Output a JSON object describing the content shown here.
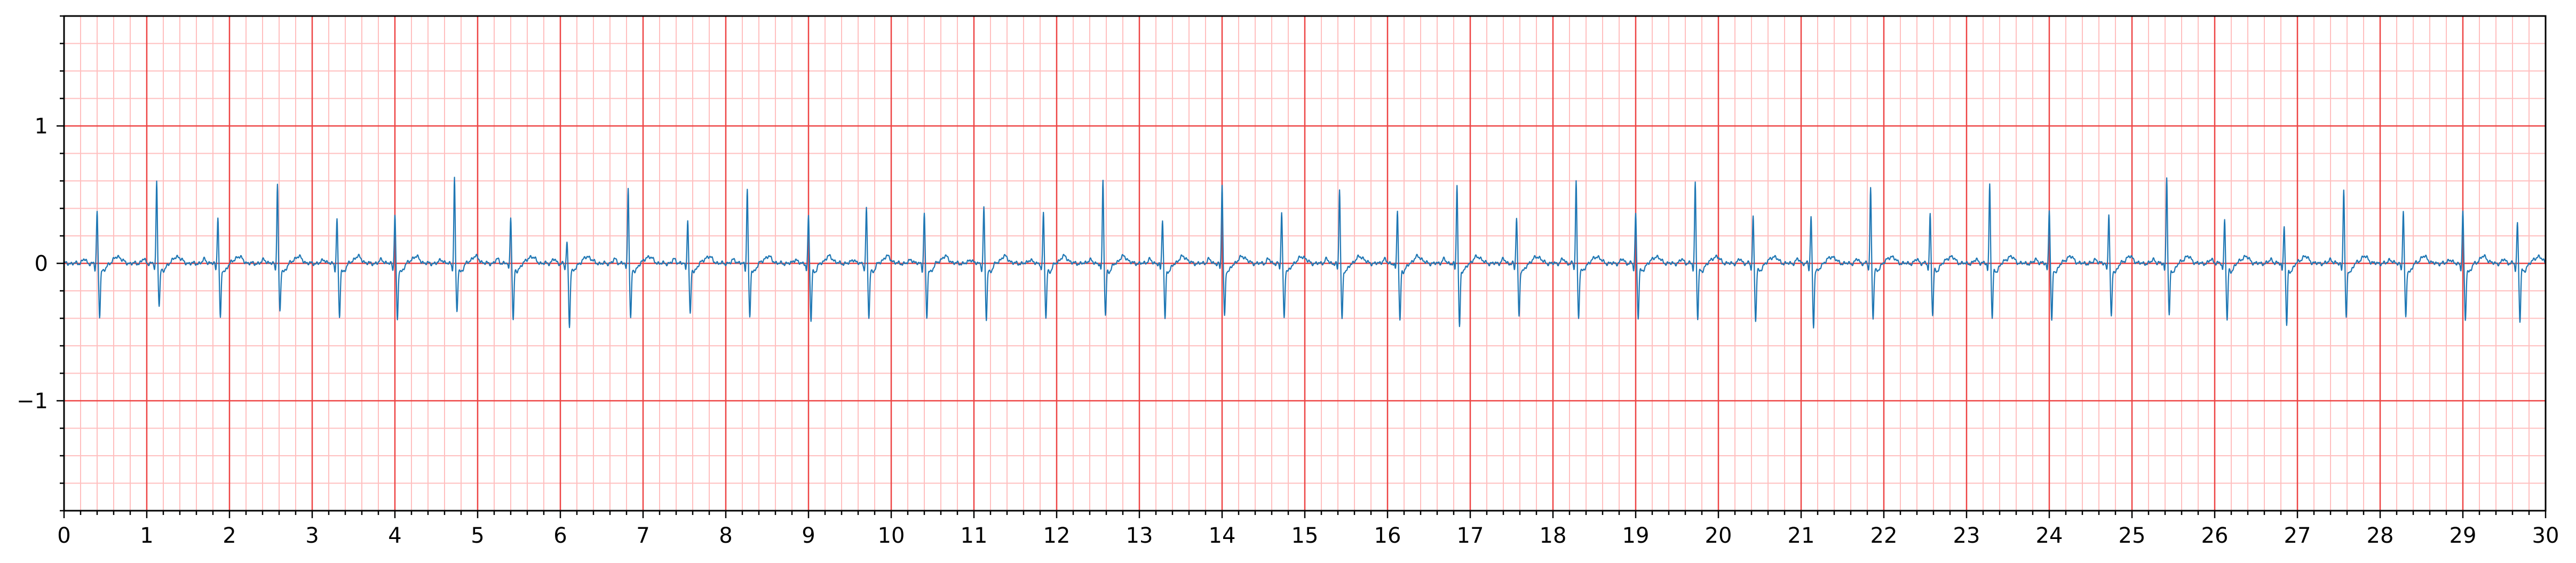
{
  "chart_data": {
    "type": "line",
    "title": "",
    "xlabel": "",
    "ylabel": "",
    "xlim": [
      0,
      30
    ],
    "ylim": [
      -1.8,
      1.8
    ],
    "x_ticks": [
      "0",
      "1",
      "2",
      "3",
      "4",
      "5",
      "6",
      "7",
      "8",
      "9",
      "10",
      "11",
      "12",
      "13",
      "14",
      "15",
      "16",
      "17",
      "18",
      "19",
      "20",
      "21",
      "22",
      "23",
      "24",
      "25",
      "26",
      "27",
      "28",
      "29",
      "30"
    ],
    "y_ticks": [
      "1",
      "0",
      "−1"
    ],
    "y_tick_values": [
      1,
      0,
      -1
    ],
    "grid": {
      "major_step_x": 1,
      "major_step_y": 1,
      "minor_step_x": 0.2,
      "minor_step_y": 0.2,
      "major_color": "#ee4444",
      "minor_color": "#ffbfbf"
    },
    "background": "#ffffff",
    "series": [
      {
        "color": "#1f77b4",
        "beat_times": [
          0.4,
          1.12,
          1.86,
          2.58,
          3.3,
          4.0,
          4.72,
          5.4,
          6.08,
          6.82,
          7.54,
          8.26,
          9.0,
          9.7,
          10.4,
          11.12,
          11.84,
          12.56,
          13.28,
          14.0,
          14.72,
          15.42,
          16.12,
          16.84,
          17.56,
          18.28,
          19.0,
          19.72,
          20.42,
          21.12,
          21.84,
          22.56,
          23.28,
          24.0,
          24.72,
          25.42,
          26.12,
          26.84,
          27.56,
          28.28,
          29.0,
          29.66
        ],
        "r_amplitudes": [
          0.38,
          0.6,
          0.35,
          0.58,
          0.32,
          0.36,
          0.62,
          0.34,
          0.15,
          0.56,
          0.32,
          0.55,
          0.34,
          0.4,
          0.37,
          0.41,
          0.36,
          0.6,
          0.32,
          0.58,
          0.37,
          0.55,
          0.38,
          0.58,
          0.34,
          0.6,
          0.36,
          0.6,
          0.34,
          0.35,
          0.55,
          0.36,
          0.59,
          0.4,
          0.36,
          0.64,
          0.32,
          0.28,
          0.55,
          0.38,
          0.37,
          0.3
        ],
        "s_amplitudes": [
          -0.36,
          -0.28,
          -0.38,
          -0.34,
          -0.38,
          -0.4,
          -0.34,
          -0.4,
          -0.44,
          -0.38,
          -0.36,
          -0.38,
          -0.4,
          -0.38,
          -0.38,
          -0.39,
          -0.38,
          -0.36,
          -0.38,
          -0.36,
          -0.38,
          -0.38,
          -0.4,
          -0.44,
          -0.36,
          -0.38,
          -0.38,
          -0.38,
          -0.4,
          -0.44,
          -0.38,
          -0.36,
          -0.38,
          -0.4,
          -0.38,
          -0.36,
          -0.4,
          -0.44,
          -0.38,
          -0.38,
          -0.4,
          -0.4
        ],
        "baseline_extent": [
          0,
          30
        ]
      }
    ]
  }
}
